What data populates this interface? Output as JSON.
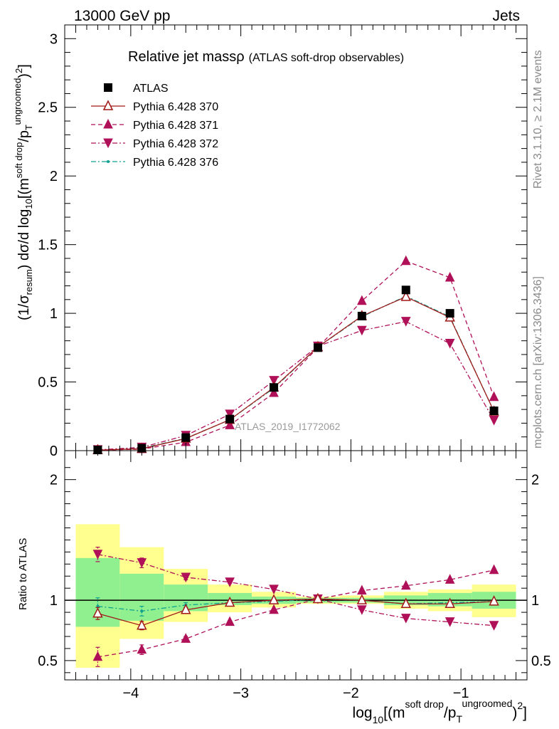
{
  "header": {
    "left": "13000 GeV pp",
    "right": "Jets"
  },
  "side_text": {
    "rivet": "Rivet 3.1.10, ≥ 2.1M events",
    "mcplots": "mcplots.cern.ch [arXiv:1306.3436]"
  },
  "chart_data": {
    "type": "scatter",
    "title": "Relative jet massρ",
    "subtitle": "(ATLAS soft-drop observables)",
    "watermark": "ATLAS_2019_I1772062",
    "xlabel": "log10[(m^soft drop/pT^ungroomed)^2]",
    "ylabel_main": "(1/σresum) dσ/d log10[(m^soft drop/pT^ungroomed)^2]",
    "ylabel_ratio": "Ratio to ATLAS",
    "xlim": [
      -4.6,
      -0.4
    ],
    "ylim_main": [
      0,
      3.1
    ],
    "ylim_ratio": [
      0.34,
      2.24
    ],
    "x_ticks": [
      "−4",
      "−3",
      "−2",
      "−1"
    ],
    "x_tick_values": [
      -4,
      -3,
      -2,
      -1
    ],
    "y_ticks_main": [
      "0",
      "0.5",
      "1",
      "1.5",
      "2",
      "2.5",
      "3"
    ],
    "y_tick_values_main": [
      0,
      0.5,
      1,
      1.5,
      2,
      2.5,
      3
    ],
    "y_ticks_ratio": [
      "0.5",
      "1",
      "2"
    ],
    "y_tick_values_ratio": [
      0.5,
      1,
      2
    ],
    "legend_position": "top-left",
    "bins": [
      [
        -4.5,
        -4.1
      ],
      [
        -4.1,
        -3.7
      ],
      [
        -3.7,
        -3.3
      ],
      [
        -3.3,
        -2.9
      ],
      [
        -2.9,
        -2.5
      ],
      [
        -2.5,
        -2.1
      ],
      [
        -2.1,
        -1.7
      ],
      [
        -1.7,
        -1.3
      ],
      [
        -1.3,
        -0.9
      ],
      [
        -0.9,
        -0.5
      ]
    ],
    "x": [
      -4.3,
      -3.9,
      -3.5,
      -3.1,
      -2.7,
      -2.3,
      -1.9,
      -1.5,
      -1.1,
      -0.7
    ],
    "ratio_bands": {
      "inner": [
        [
          0.78,
          1.35
        ],
        [
          0.83,
          1.22
        ],
        [
          0.91,
          1.13
        ],
        [
          0.96,
          1.06
        ],
        [
          0.97,
          1.03
        ],
        [
          0.98,
          1.02
        ],
        [
          0.98,
          1.02
        ],
        [
          0.96,
          1.04
        ],
        [
          0.95,
          1.06
        ],
        [
          0.93,
          1.07
        ]
      ],
      "outer": [
        [
          0.44,
          1.63
        ],
        [
          0.68,
          1.44
        ],
        [
          0.82,
          1.26
        ],
        [
          0.9,
          1.13
        ],
        [
          0.94,
          1.07
        ],
        [
          0.97,
          1.03
        ],
        [
          0.97,
          1.04
        ],
        [
          0.93,
          1.07
        ],
        [
          0.91,
          1.09
        ],
        [
          0.86,
          1.13
        ]
      ],
      "inner_color": "#90f090",
      "outer_color": "#ffff90"
    },
    "series": [
      {
        "name": "ATLAS",
        "marker": "square",
        "color": "#000000",
        "line": "none",
        "values": [
          0.005,
          0.018,
          0.095,
          0.23,
          0.46,
          0.75,
          0.98,
          1.17,
          1.0,
          0.29
        ]
      },
      {
        "name": "Pythia 6.428 370",
        "marker": "triangle-up-open",
        "color": "#a01818",
        "line": "solid",
        "values": [
          0.004,
          0.014,
          0.088,
          0.225,
          0.46,
          0.755,
          0.98,
          1.12,
          0.97,
          0.285
        ],
        "ratio": [
          0.89,
          0.79,
          0.92,
          0.98,
          1.0,
          1.01,
          1.0,
          0.97,
          0.97,
          0.99
        ],
        "ratio_err": [
          0.05,
          0.035,
          0.02,
          0.01,
          0.005,
          0.005,
          0.005,
          0.005,
          0.005,
          0.01
        ]
      },
      {
        "name": "Pythia 6.428 371",
        "marker": "triangle-up",
        "color": "#b01058",
        "line": "dashed",
        "values": [
          0.003,
          0.011,
          0.062,
          0.185,
          0.42,
          0.75,
          1.09,
          1.38,
          1.26,
          0.39
        ],
        "ratio": [
          0.53,
          0.59,
          0.68,
          0.82,
          0.92,
          1.01,
          1.08,
          1.12,
          1.17,
          1.25
        ],
        "ratio_err": [
          0.08,
          0.04,
          0.02,
          0.01,
          0.005,
          0.005,
          0.005,
          0.005,
          0.005,
          0.01
        ]
      },
      {
        "name": "Pythia 6.428 372",
        "marker": "triangle-down",
        "color": "#b01058",
        "line": "dashdot",
        "values": [
          0.006,
          0.024,
          0.11,
          0.265,
          0.51,
          0.76,
          0.875,
          0.94,
          0.78,
          0.22
        ],
        "ratio": [
          1.38,
          1.31,
          1.19,
          1.15,
          1.09,
          1.01,
          0.92,
          0.85,
          0.82,
          0.79
        ],
        "ratio_err": [
          0.06,
          0.04,
          0.02,
          0.01,
          0.005,
          0.005,
          0.005,
          0.005,
          0.005,
          0.01
        ]
      },
      {
        "name": "Pythia 6.428 376",
        "marker": "dot",
        "color": "#10a090",
        "line": "dashdot",
        "values": [
          0.005,
          0.017,
          0.09,
          0.225,
          0.455,
          0.755,
          0.975,
          1.125,
          0.975,
          0.285
        ],
        "ratio": [
          0.95,
          0.91,
          0.96,
          0.98,
          0.99,
          1.01,
          1.0,
          0.97,
          0.98,
          0.99
        ],
        "ratio_err": [
          0.07,
          0.04,
          0.02,
          0.01,
          0.005,
          0.005,
          0.005,
          0.005,
          0.005,
          0.01
        ]
      }
    ]
  }
}
